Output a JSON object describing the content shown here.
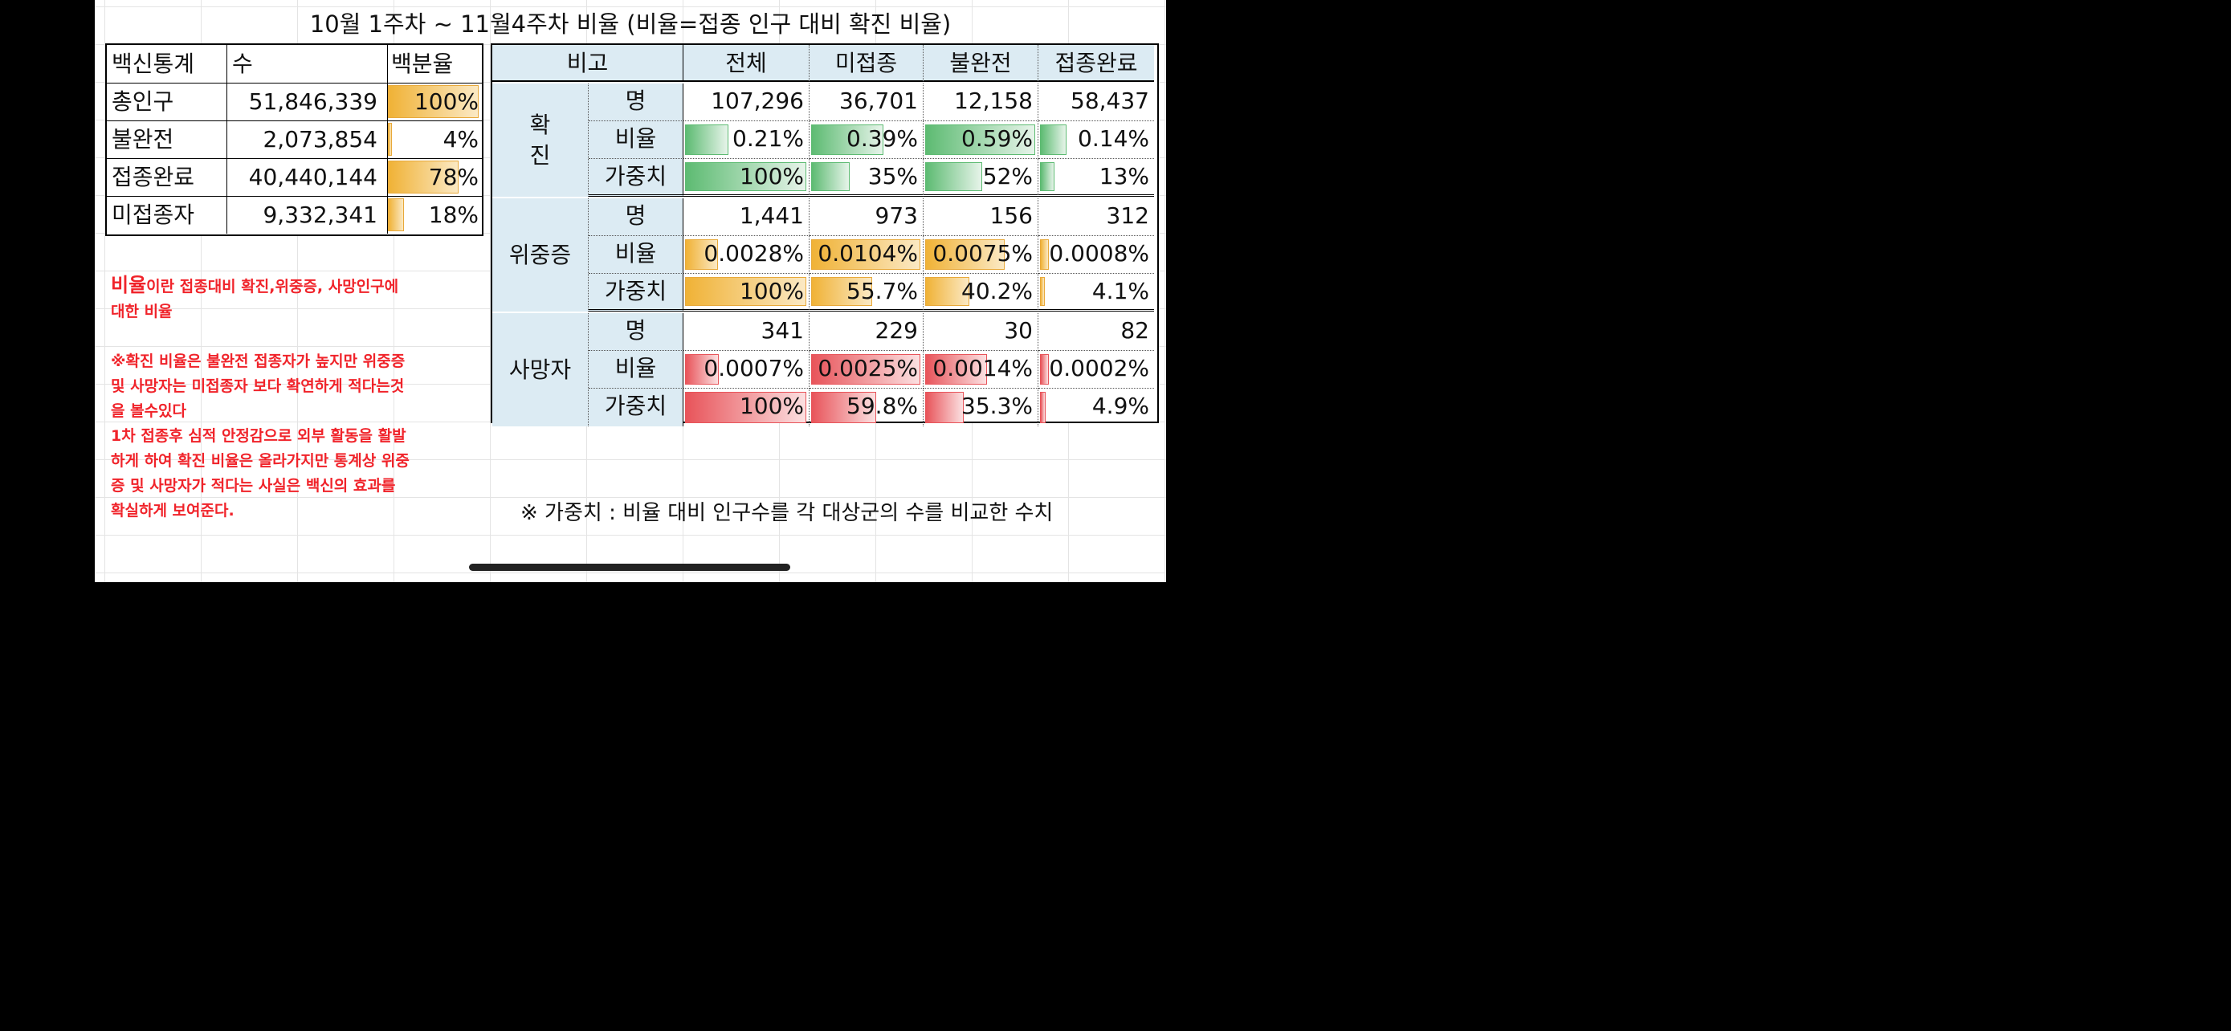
{
  "title": "10월 1주차 ~ 11월4주차 비율 (비율=접종 인구 대비 확진 비율)",
  "left_table": {
    "headers": [
      "백신통계",
      "수",
      "백분율"
    ],
    "rows": [
      {
        "label": "총인구",
        "count": "51,846,339",
        "pct": "100%",
        "pct_value": 100
      },
      {
        "label": "불완전",
        "count": "2,073,854",
        "pct": "4%",
        "pct_value": 4
      },
      {
        "label": "접종완료",
        "count": "40,440,144",
        "pct": "78%",
        "pct_value": 78
      },
      {
        "label": "미접종자",
        "count": "9,332,341",
        "pct": "18%",
        "pct_value": 18
      }
    ]
  },
  "right_table": {
    "headers": [
      "비고",
      "전체",
      "미접종",
      "불완전",
      "접종완료"
    ],
    "groups": [
      {
        "name": "확\n진",
        "name_lines": [
          "확",
          "진"
        ],
        "color": "green",
        "rows": [
          {
            "sub": "명",
            "values": [
              "107,296",
              "36,701",
              "12,158",
              "58,437"
            ],
            "bars": null
          },
          {
            "sub": "비율",
            "values": [
              "0.21%",
              "0.39%",
              "0.59%",
              "0.14%"
            ],
            "bars": [
              36,
              66,
              100,
              24
            ]
          },
          {
            "sub": "가중치",
            "values": [
              "100%",
              "35%",
              "52%",
              "13%"
            ],
            "bars": [
              100,
              35,
              52,
              13
            ]
          }
        ]
      },
      {
        "name": "위중증",
        "name_lines": [
          "위중증"
        ],
        "color": "orange",
        "rows": [
          {
            "sub": "명",
            "values": [
              "1,441",
              "973",
              "156",
              "312"
            ],
            "bars": null
          },
          {
            "sub": "비율",
            "values": [
              "0.0028%",
              "0.0104%",
              "0.0075%",
              "0.0008%"
            ],
            "bars": [
              27,
              100,
              72,
              8
            ]
          },
          {
            "sub": "가중치",
            "values": [
              "100%",
              "55.7%",
              "40.2%",
              "4.1%"
            ],
            "bars": [
              100,
              55.7,
              40.2,
              4.1
            ]
          }
        ]
      },
      {
        "name": "사망자",
        "name_lines": [
          "사망자"
        ],
        "color": "red",
        "rows": [
          {
            "sub": "명",
            "values": [
              "341",
              "229",
              "30",
              "82"
            ],
            "bars": null
          },
          {
            "sub": "비율",
            "values": [
              "0.0007%",
              "0.0025%",
              "0.0014%",
              "0.0002%"
            ],
            "bars": [
              28,
              100,
              56,
              8
            ]
          },
          {
            "sub": "가중치",
            "values": [
              "100%",
              "59.8%",
              "35.3%",
              "4.9%"
            ],
            "bars": [
              100,
              59.8,
              35.3,
              4.9
            ]
          }
        ]
      }
    ]
  },
  "notes": {
    "lead_word": "비율",
    "line1_rest": "이란 접종대비 확진,위중증, 사망인구에",
    "line2": "대한 비율",
    "para2": [
      "※확진 비율은 불완전 접종자가 높지만 위중증",
      "및 사망자는 미접종자 보다 확연하게 적다는것",
      "을 볼수있다",
      "1차 접종후 심적 안정감으로 외부 활동을 활발",
      "하게 하여 확진 비율은 올라가지만 통계상 위중",
      "증 및 사망자가 적다는 사실은 백신의 효과를",
      "확실하게 보여준다."
    ]
  },
  "footnote": "※ 가중치 : 비율 대비 인구수를 각 대상군의 수를 비교한 수치",
  "colors": {
    "header_bg": "#dcebf3",
    "note_red": "#f0232a",
    "bar_green": "#5dbb72",
    "bar_orange": "#f0b236",
    "bar_red": "#e8545a"
  }
}
